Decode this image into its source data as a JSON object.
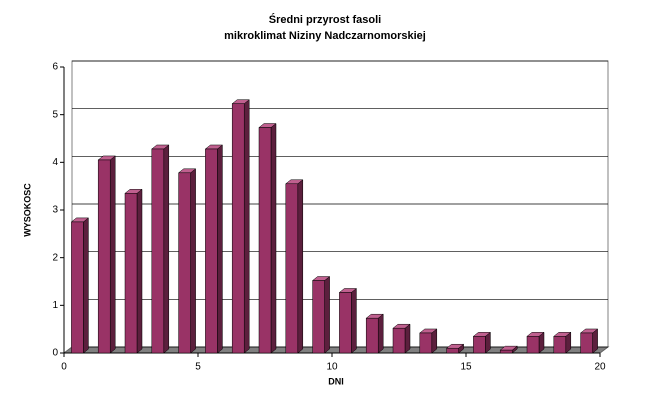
{
  "chart_data": {
    "type": "bar3d",
    "title": [
      "Średni przyrost fasoli",
      "mikroklimat Niziny Nadczarnomorskiej"
    ],
    "x_label": "DNI",
    "y_label": "WYSOKOSC",
    "x": [
      0.5,
      1.5,
      2.5,
      3.5,
      4.5,
      5.5,
      6.5,
      7.5,
      8.5,
      9.5,
      10.5,
      11.5,
      12.5,
      13.5,
      14.5,
      15.5,
      16.5,
      17.5,
      18.5,
      19.5
    ],
    "values": [
      2.75,
      4.05,
      3.35,
      4.28,
      3.78,
      4.28,
      5.23,
      4.73,
      3.55,
      1.52,
      1.27,
      0.73,
      0.52,
      0.42,
      0.1,
      0.35,
      0.06,
      0.35,
      0.35,
      0.42
    ],
    "color": "#993366",
    "xlim": [
      0,
      20
    ],
    "xticks": [
      0,
      5,
      10,
      15,
      20
    ],
    "ylim": [
      0,
      6
    ],
    "yticks": [
      0,
      1,
      2,
      3,
      4,
      5,
      6
    ],
    "grid": true
  }
}
